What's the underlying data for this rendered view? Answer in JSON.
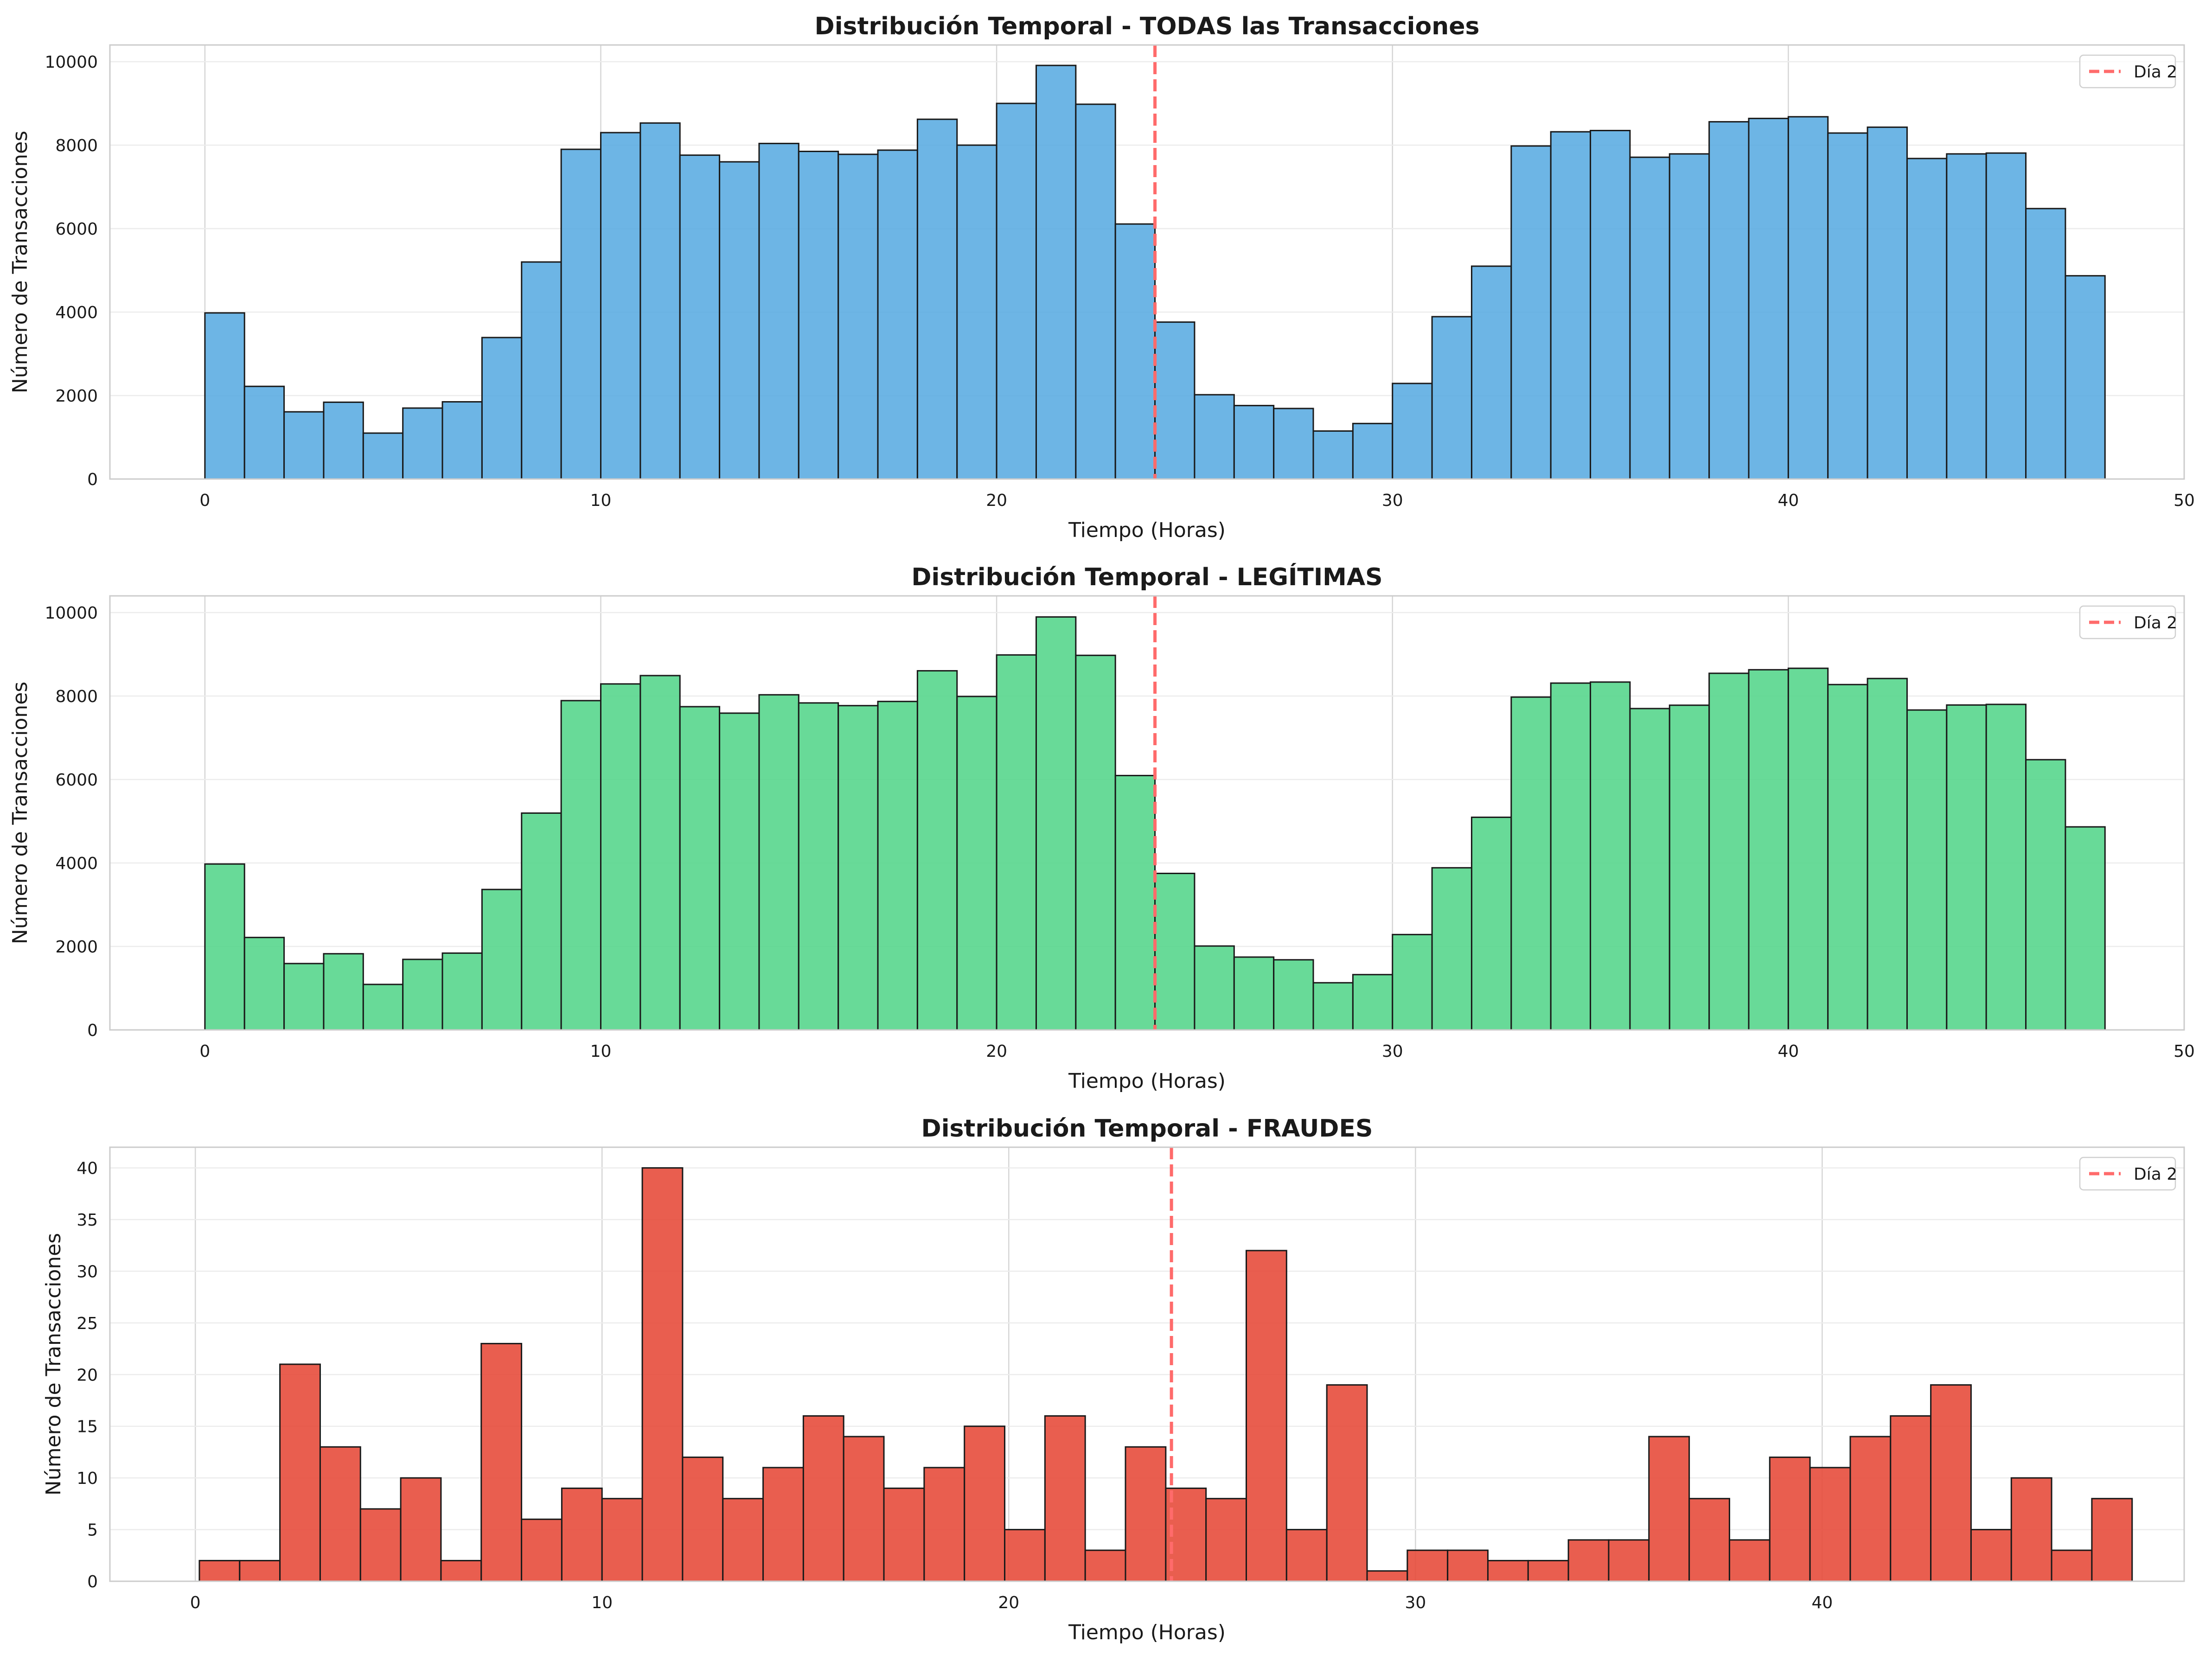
{
  "chart_data": [
    {
      "type": "bar",
      "title": "Distribución Temporal - TODAS las Transacciones",
      "xlabel": "Tiempo (Horas)",
      "ylabel": "Número de Transacciones",
      "xlim": [
        -2.4,
        50.0
      ],
      "ylim": [
        0,
        10400
      ],
      "xticks": [
        0,
        10,
        20,
        30,
        40,
        50
      ],
      "yticks": [
        0,
        2000,
        4000,
        6000,
        8000,
        10000
      ],
      "bin_start": 0,
      "bin_width": 1,
      "values": [
        3980,
        2220,
        1610,
        1840,
        1100,
        1700,
        1850,
        3390,
        5200,
        7900,
        8300,
        8530,
        7760,
        7600,
        8040,
        7850,
        7780,
        7880,
        8620,
        8000,
        9000,
        9910,
        8980,
        6110,
        3760,
        2020,
        1760,
        1690,
        1150,
        1330,
        2290,
        3890,
        5100,
        7980,
        8320,
        8350,
        7710,
        7790,
        8560,
        8640,
        8680,
        8290,
        8430,
        7680,
        7790,
        7810,
        6480,
        4870
      ],
      "color": "#5dade2",
      "reference_line": {
        "x": 24,
        "label": "Día 2",
        "color": "#ff6b6b"
      },
      "legend_position": "upper right",
      "grid": true
    },
    {
      "type": "bar",
      "title": "Distribución Temporal - LEGÍTIMAS",
      "xlabel": "Tiempo (Horas)",
      "ylabel": "Número de Transacciones",
      "xlim": [
        -2.4,
        50.0
      ],
      "ylim": [
        0,
        10400
      ],
      "xticks": [
        0,
        10,
        20,
        30,
        40,
        50
      ],
      "yticks": [
        0,
        2000,
        4000,
        6000,
        8000,
        10000
      ],
      "bin_start": 0,
      "bin_width": 1,
      "values": [
        3975,
        2215,
        1590,
        1825,
        1090,
        1690,
        1840,
        3365,
        5195,
        7890,
        8290,
        8490,
        7745,
        7590,
        8030,
        7835,
        7770,
        7870,
        8605,
        7990,
        8985,
        9895,
        8975,
        6095,
        3750,
        2010,
        1745,
        1680,
        1130,
        1325,
        2285,
        3885,
        5095,
        7975,
        8310,
        8335,
        7700,
        7780,
        8545,
        8630,
        8665,
        8275,
        8420,
        7665,
        7785,
        7800,
        6475,
        4865
      ],
      "color": "#58d68d",
      "reference_line": {
        "x": 24,
        "label": "Día 2",
        "color": "#ff6b6b"
      },
      "legend_position": "upper right",
      "grid": true
    },
    {
      "type": "bar",
      "title": "Distribución Temporal - FRAUDES",
      "xlabel": "Tiempo (Horas)",
      "ylabel": "Número de Transacciones",
      "xlim": [
        -2.1,
        48.9
      ],
      "ylim": [
        0,
        42
      ],
      "xticks": [
        0,
        10,
        20,
        30,
        40
      ],
      "yticks": [
        0,
        5,
        10,
        15,
        20,
        25,
        30,
        35,
        40
      ],
      "bin_start": 0.1,
      "bin_width": 0.99,
      "values": [
        2,
        2,
        21,
        13,
        7,
        10,
        2,
        23,
        6,
        9,
        8,
        40,
        12,
        8,
        11,
        16,
        14,
        9,
        11,
        15,
        5,
        16,
        3,
        13,
        9,
        8,
        32,
        5,
        19,
        1,
        3,
        3,
        2,
        2,
        4,
        4,
        14,
        8,
        4,
        12,
        11,
        14,
        16,
        19,
        5,
        10,
        3,
        8
      ],
      "color": "#e74c3c",
      "reference_line": {
        "x": 24,
        "label": "Día 2",
        "color": "#ff6b6b"
      },
      "legend_position": "upper right",
      "grid": true
    }
  ]
}
